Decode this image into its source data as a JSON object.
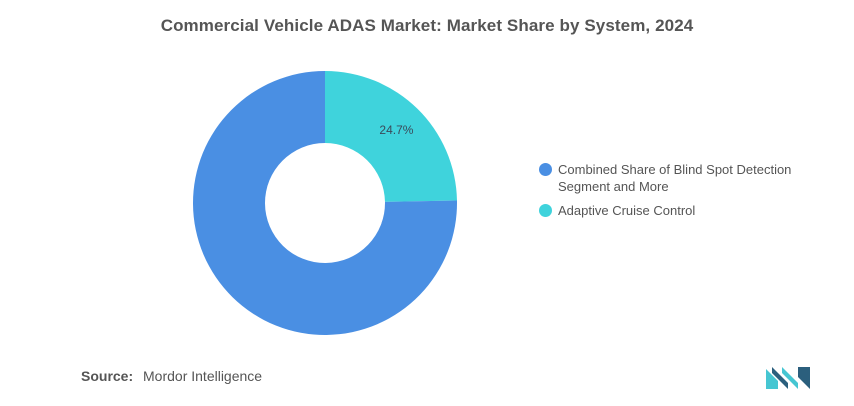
{
  "colors": {
    "segment_1": "#4a8fe3",
    "segment_2": "#3fd3dc",
    "logo_dark": "#2b5f7d",
    "logo_light": "#46c6d2"
  },
  "chart_data": {
    "type": "pie",
    "variant": "donut",
    "title": "Commercial Vehicle ADAS Market: Market Share by System, 2024",
    "categories": [
      "Combined Share of Blind Spot Detection Segment and More",
      "Adaptive Cruise Control"
    ],
    "values": [
      75.3,
      24.7
    ],
    "data_labels": [
      "",
      "24.7%"
    ],
    "legend_position": "right"
  },
  "source": {
    "label": "Source:",
    "value": "Mordor Intelligence"
  },
  "logo": {
    "icon": "mordor-intelligence-logo-icon"
  }
}
